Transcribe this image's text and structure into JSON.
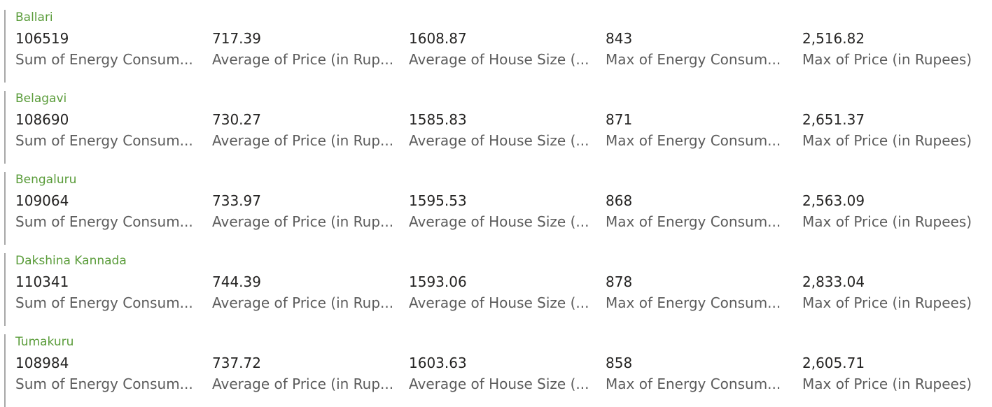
{
  "cards": [
    {
      "city": "Ballari",
      "metrics": [
        {
          "value": "106519",
          "label": "Sum of Energy Consum..."
        },
        {
          "value": "717.39",
          "label": "Average of Price (in Rup..."
        },
        {
          "value": "1608.87",
          "label": "Average of House Size (..."
        },
        {
          "value": "843",
          "label": "Max of Energy Consum..."
        },
        {
          "value": "2,516.82",
          "label": "Max of Price (in Rupees)"
        }
      ]
    },
    {
      "city": "Belagavi",
      "metrics": [
        {
          "value": "108690",
          "label": "Sum of Energy Consum..."
        },
        {
          "value": "730.27",
          "label": "Average of Price (in Rup..."
        },
        {
          "value": "1585.83",
          "label": "Average of House Size (..."
        },
        {
          "value": "871",
          "label": "Max of Energy Consum..."
        },
        {
          "value": "2,651.37",
          "label": "Max of Price (in Rupees)"
        }
      ]
    },
    {
      "city": "Bengaluru",
      "metrics": [
        {
          "value": "109064",
          "label": "Sum of Energy Consum..."
        },
        {
          "value": "733.97",
          "label": "Average of Price (in Rup..."
        },
        {
          "value": "1595.53",
          "label": "Average of House Size (..."
        },
        {
          "value": "868",
          "label": "Max of Energy Consum..."
        },
        {
          "value": "2,563.09",
          "label": "Max of Price (in Rupees)"
        }
      ]
    },
    {
      "city": "Dakshina Kannada",
      "metrics": [
        {
          "value": "110341",
          "label": "Sum of Energy Consum..."
        },
        {
          "value": "744.39",
          "label": "Average of Price (in Rup..."
        },
        {
          "value": "1593.06",
          "label": "Average of House Size (..."
        },
        {
          "value": "878",
          "label": "Max of Energy Consum..."
        },
        {
          "value": "2,833.04",
          "label": "Max of Price (in Rupees)"
        }
      ]
    },
    {
      "city": "Tumakuru",
      "metrics": [
        {
          "value": "108984",
          "label": "Sum of Energy Consum..."
        },
        {
          "value": "737.72",
          "label": "Average of Price (in Rup..."
        },
        {
          "value": "1603.63",
          "label": "Average of House Size (..."
        },
        {
          "value": "858",
          "label": "Max of Energy Consum..."
        },
        {
          "value": "2,605.71",
          "label": "Max of Price (in Rupees)"
        }
      ]
    }
  ]
}
